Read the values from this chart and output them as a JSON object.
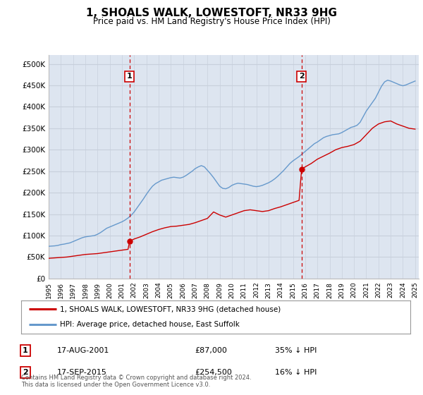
{
  "title": "1, SHOALS WALK, LOWESTOFT, NR33 9HG",
  "subtitle": "Price paid vs. HM Land Registry's House Price Index (HPI)",
  "legend_line1": "1, SHOALS WALK, LOWESTOFT, NR33 9HG (detached house)",
  "legend_line2": "HPI: Average price, detached house, East Suffolk",
  "footer": "Contains HM Land Registry data © Crown copyright and database right 2024.\nThis data is licensed under the Open Government Licence v3.0.",
  "transactions": [
    {
      "id": 1,
      "date": "17-AUG-2001",
      "price": 87000,
      "pct": "35% ↓ HPI",
      "year": 2001.625
    },
    {
      "id": 2,
      "date": "17-SEP-2015",
      "price": 254500,
      "pct": "16% ↓ HPI",
      "year": 2015.708
    }
  ],
  "ylabel_ticks": [
    0,
    50000,
    100000,
    150000,
    200000,
    250000,
    300000,
    350000,
    400000,
    450000,
    500000
  ],
  "ylim": [
    0,
    520000
  ],
  "xlim_start": 1995.0,
  "xlim_end": 2025.3,
  "background_color": "#dde5f0",
  "plot_bg_color": "#dde5f0",
  "fig_bg_color": "#ffffff",
  "red_color": "#cc0000",
  "blue_color": "#6699cc",
  "grid_color": "#c8d0dc",
  "hpi_data_years": [
    1995.0,
    1995.25,
    1995.5,
    1995.75,
    1996.0,
    1996.25,
    1996.5,
    1996.75,
    1997.0,
    1997.25,
    1997.5,
    1997.75,
    1998.0,
    1998.25,
    1998.5,
    1998.75,
    1999.0,
    1999.25,
    1999.5,
    1999.75,
    2000.0,
    2000.25,
    2000.5,
    2000.75,
    2001.0,
    2001.25,
    2001.5,
    2001.75,
    2002.0,
    2002.25,
    2002.5,
    2002.75,
    2003.0,
    2003.25,
    2003.5,
    2003.75,
    2004.0,
    2004.25,
    2004.5,
    2004.75,
    2005.0,
    2005.25,
    2005.5,
    2005.75,
    2006.0,
    2006.25,
    2006.5,
    2006.75,
    2007.0,
    2007.25,
    2007.5,
    2007.75,
    2008.0,
    2008.25,
    2008.5,
    2008.75,
    2009.0,
    2009.25,
    2009.5,
    2009.75,
    2010.0,
    2010.25,
    2010.5,
    2010.75,
    2011.0,
    2011.25,
    2011.5,
    2011.75,
    2012.0,
    2012.25,
    2012.5,
    2012.75,
    2013.0,
    2013.25,
    2013.5,
    2013.75,
    2014.0,
    2014.25,
    2014.5,
    2014.75,
    2015.0,
    2015.25,
    2015.5,
    2015.75,
    2016.0,
    2016.25,
    2016.5,
    2016.75,
    2017.0,
    2017.25,
    2017.5,
    2017.75,
    2018.0,
    2018.25,
    2018.5,
    2018.75,
    2019.0,
    2019.25,
    2019.5,
    2019.75,
    2020.0,
    2020.25,
    2020.5,
    2020.75,
    2021.0,
    2021.25,
    2021.5,
    2021.75,
    2022.0,
    2022.25,
    2022.5,
    2022.75,
    2023.0,
    2023.25,
    2023.5,
    2023.75,
    2024.0,
    2024.25,
    2024.5,
    2024.75,
    2025.0
  ],
  "hpi_data_values": [
    75000,
    75500,
    76000,
    77000,
    79000,
    80000,
    81500,
    83000,
    86000,
    89000,
    92000,
    95000,
    97000,
    98000,
    99000,
    100000,
    103000,
    107000,
    112000,
    117000,
    120000,
    123000,
    126000,
    129000,
    132000,
    136000,
    141000,
    147000,
    155000,
    165000,
    175000,
    185000,
    196000,
    206000,
    215000,
    221000,
    225000,
    229000,
    231000,
    233000,
    235000,
    236000,
    235000,
    234000,
    236000,
    240000,
    245000,
    250000,
    256000,
    260000,
    263000,
    260000,
    252000,
    244000,
    235000,
    225000,
    215000,
    210000,
    209000,
    212000,
    217000,
    220000,
    222000,
    221000,
    220000,
    219000,
    217000,
    215000,
    214000,
    215000,
    217000,
    220000,
    223000,
    227000,
    232000,
    238000,
    245000,
    252000,
    260000,
    268000,
    274000,
    279000,
    284000,
    290000,
    296000,
    302000,
    308000,
    314000,
    318000,
    323000,
    328000,
    331000,
    333000,
    335000,
    336000,
    337000,
    340000,
    344000,
    348000,
    352000,
    354000,
    357000,
    364000,
    377000,
    390000,
    400000,
    410000,
    420000,
    434000,
    448000,
    458000,
    462000,
    460000,
    457000,
    454000,
    451000,
    449000,
    451000,
    454000,
    457000,
    460000
  ],
  "price_data_years": [
    1995.0,
    1995.5,
    1996.0,
    1996.5,
    1997.0,
    1997.5,
    1998.0,
    1998.5,
    1999.0,
    1999.5,
    2000.0,
    2000.5,
    2001.0,
    2001.5,
    2001.625,
    2002.0,
    2002.5,
    2003.0,
    2003.5,
    2004.0,
    2004.5,
    2005.0,
    2005.5,
    2006.0,
    2006.5,
    2007.0,
    2007.5,
    2008.0,
    2008.5,
    2009.0,
    2009.5,
    2010.0,
    2010.5,
    2011.0,
    2011.5,
    2012.0,
    2012.5,
    2013.0,
    2013.5,
    2014.0,
    2014.5,
    2015.0,
    2015.5,
    2015.708,
    2016.0,
    2016.5,
    2017.0,
    2017.5,
    2018.0,
    2018.5,
    2019.0,
    2019.5,
    2020.0,
    2020.5,
    2021.0,
    2021.5,
    2022.0,
    2022.5,
    2023.0,
    2023.5,
    2024.0,
    2024.5,
    2025.0
  ],
  "price_data_values": [
    47000,
    48000,
    49000,
    50000,
    52000,
    54000,
    56000,
    57000,
    58000,
    60000,
    62000,
    64000,
    66000,
    68000,
    87000,
    92000,
    97000,
    103000,
    109000,
    114000,
    118000,
    121000,
    122000,
    124000,
    126000,
    130000,
    135000,
    140000,
    155000,
    148000,
    143000,
    148000,
    153000,
    158000,
    160000,
    158000,
    156000,
    158000,
    163000,
    167000,
    172000,
    177000,
    182000,
    254500,
    260000,
    268000,
    278000,
    285000,
    292000,
    300000,
    305000,
    308000,
    312000,
    320000,
    335000,
    350000,
    360000,
    365000,
    367000,
    360000,
    355000,
    350000,
    348000
  ]
}
